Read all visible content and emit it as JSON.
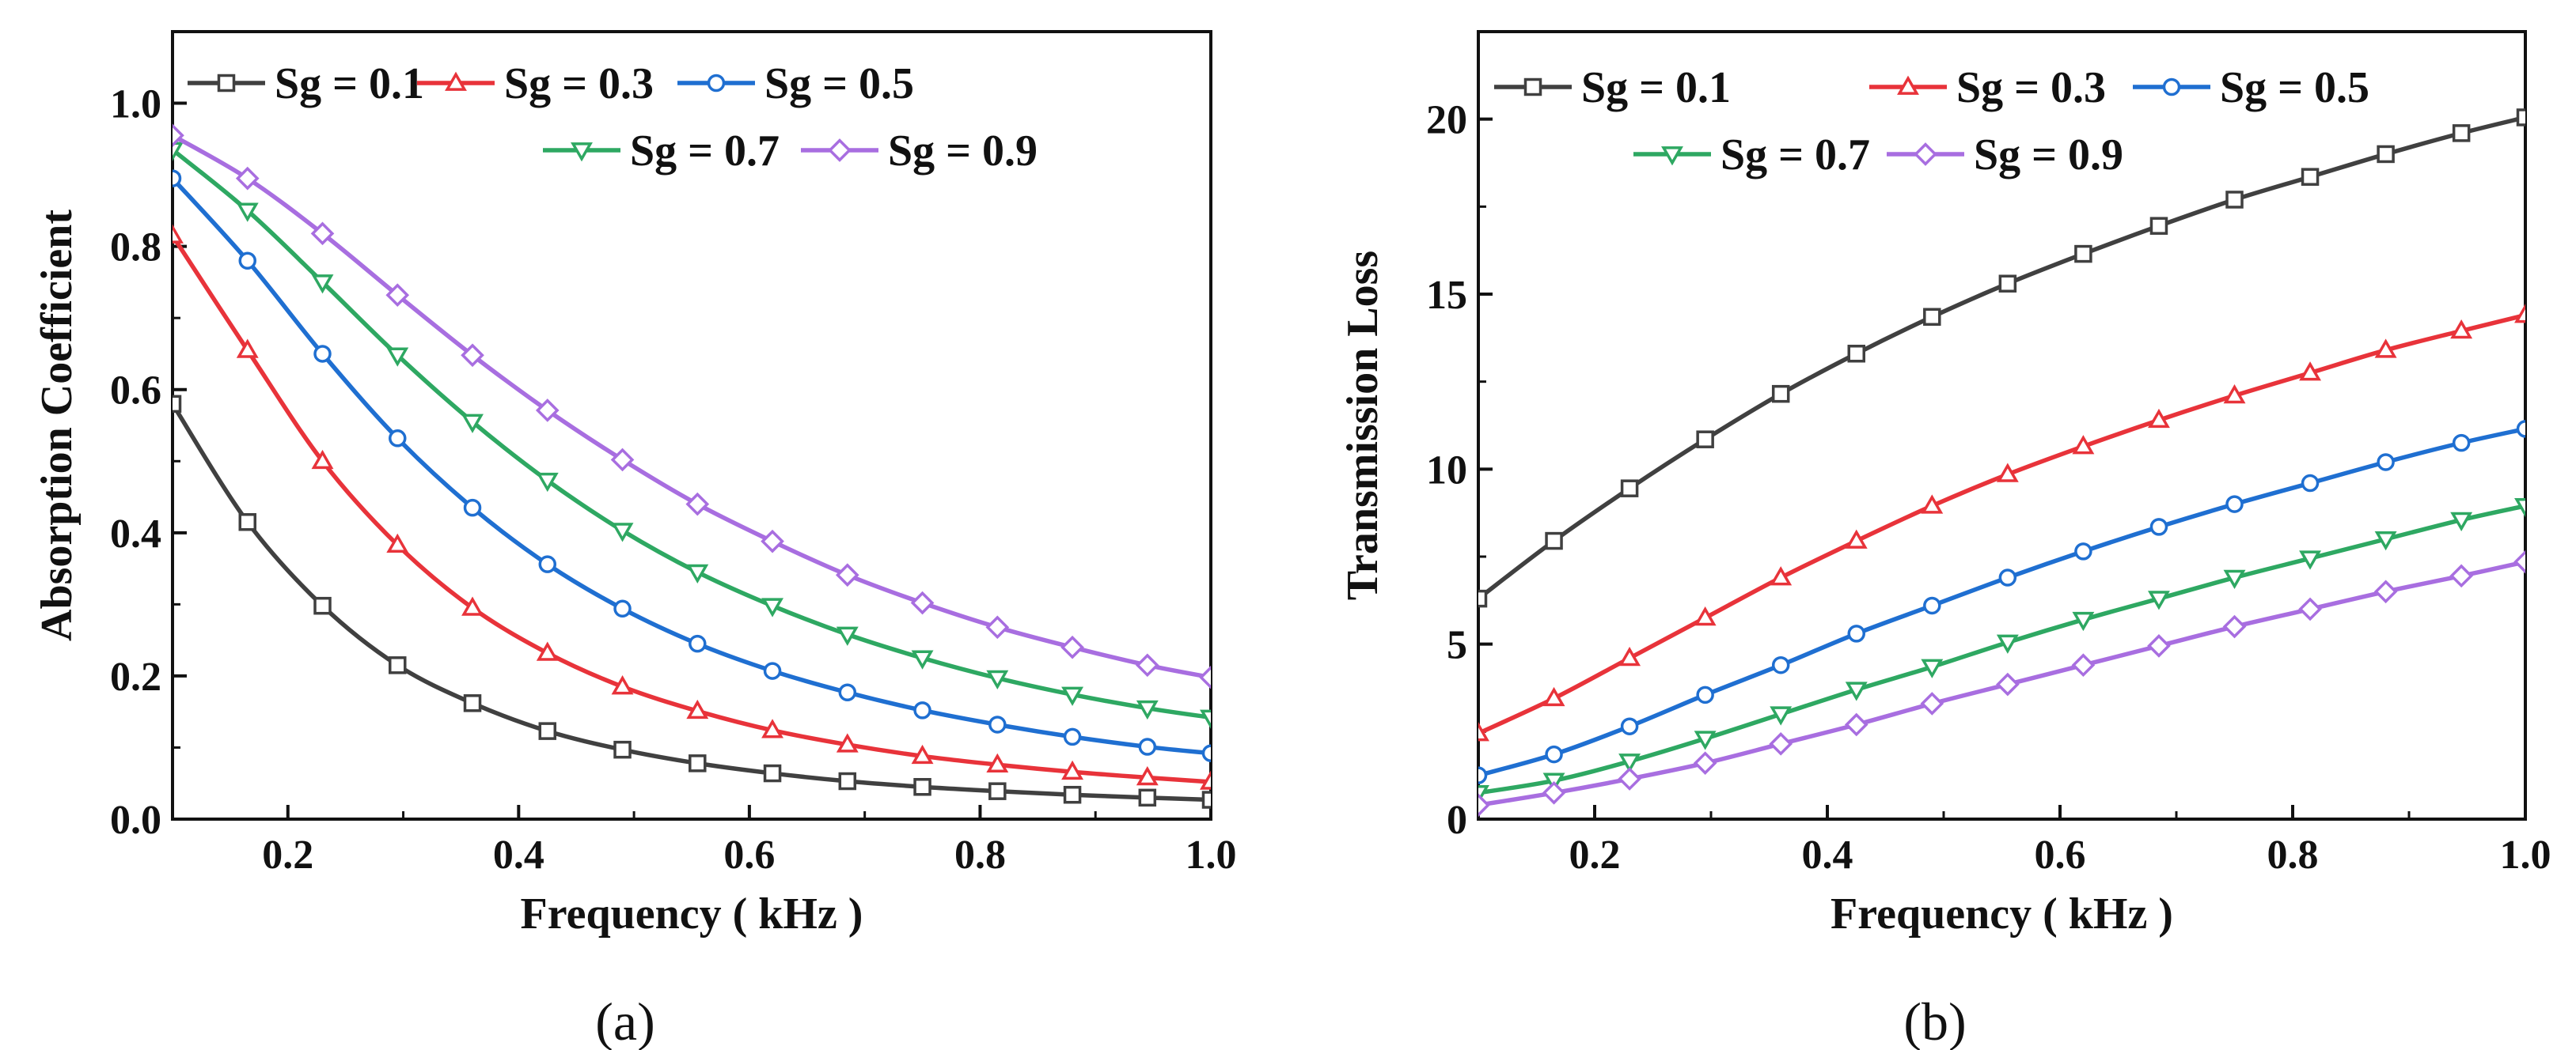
{
  "colors": {
    "Sg = 0.1": "#404040",
    "Sg = 0.3": "#e8333a",
    "Sg = 0.5": "#1f6fd1",
    "Sg = 0.7": "#2ea862",
    "Sg = 0.9": "#a86ee0"
  },
  "chart_data": [
    {
      "type": "line",
      "panel_label": "(a)",
      "title": "",
      "xlabel": "Frequency ( kHz )",
      "ylabel": "Absorption Coefficient",
      "xlim": [
        0.1,
        1.0
      ],
      "ylim": [
        0.0,
        1.1
      ],
      "xticks": [
        "0.2",
        "0.4",
        "0.6",
        "0.8",
        "1.0"
      ],
      "yticks": [
        "0.0",
        "0.2",
        "0.4",
        "0.6",
        "0.8",
        "1.0"
      ],
      "legend_position": "top",
      "x": [
        0.1,
        0.165,
        0.23,
        0.295,
        0.36,
        0.425,
        0.49,
        0.555,
        0.62,
        0.685,
        0.75,
        0.815,
        0.88,
        0.945,
        1.0
      ],
      "series": [
        {
          "name": "Sg = 0.1",
          "marker": "square",
          "values": [
            0.58,
            0.415,
            0.298,
            0.215,
            0.162,
            0.123,
            0.097,
            0.078,
            0.064,
            0.053,
            0.045,
            0.039,
            0.034,
            0.03,
            0.027
          ]
        },
        {
          "name": "Sg = 0.3",
          "marker": "triangle-up",
          "values": [
            0.815,
            0.655,
            0.5,
            0.383,
            0.295,
            0.232,
            0.185,
            0.151,
            0.124,
            0.104,
            0.088,
            0.076,
            0.066,
            0.058,
            0.052
          ]
        },
        {
          "name": "Sg = 0.5",
          "marker": "circle",
          "values": [
            0.895,
            0.78,
            0.65,
            0.532,
            0.435,
            0.356,
            0.294,
            0.245,
            0.207,
            0.177,
            0.152,
            0.132,
            0.115,
            0.101,
            0.092
          ]
        },
        {
          "name": "Sg = 0.7",
          "marker": "triangle-down",
          "values": [
            0.935,
            0.85,
            0.75,
            0.648,
            0.555,
            0.473,
            0.403,
            0.345,
            0.298,
            0.258,
            0.225,
            0.197,
            0.174,
            0.155,
            0.142
          ]
        },
        {
          "name": "Sg = 0.9",
          "marker": "diamond",
          "values": [
            0.955,
            0.895,
            0.818,
            0.732,
            0.648,
            0.571,
            0.502,
            0.44,
            0.388,
            0.341,
            0.302,
            0.268,
            0.24,
            0.215,
            0.198
          ]
        }
      ]
    },
    {
      "type": "line",
      "panel_label": "(b)",
      "title": "",
      "xlabel": "Frequency ( kHz )",
      "ylabel": "Transmission Loss",
      "xlim": [
        0.1,
        1.0
      ],
      "ylim": [
        0,
        22.5
      ],
      "xticks": [
        "0.2",
        "0.4",
        "0.6",
        "0.8",
        "1.0"
      ],
      "yticks": [
        "0",
        "5",
        "10",
        "15",
        "20"
      ],
      "legend_position": "top",
      "x": [
        0.1,
        0.165,
        0.23,
        0.295,
        0.36,
        0.425,
        0.49,
        0.555,
        0.62,
        0.685,
        0.75,
        0.815,
        0.88,
        0.945,
        1.0
      ],
      "series": [
        {
          "name": "Sg = 0.1",
          "marker": "square",
          "values": [
            6.3,
            7.95,
            9.45,
            10.85,
            12.15,
            13.3,
            14.35,
            15.3,
            16.15,
            16.95,
            17.7,
            18.35,
            19.0,
            19.6,
            20.05
          ]
        },
        {
          "name": "Sg = 0.3",
          "marker": "triangle-up",
          "values": [
            2.45,
            3.45,
            4.6,
            5.75,
            6.9,
            7.95,
            8.95,
            9.85,
            10.65,
            11.4,
            12.1,
            12.75,
            13.4,
            13.95,
            14.4
          ]
        },
        {
          "name": "Sg = 0.5",
          "marker": "circle",
          "values": [
            1.25,
            1.85,
            2.65,
            3.55,
            4.4,
            5.3,
            6.1,
            6.9,
            7.65,
            8.35,
            9.0,
            9.6,
            10.2,
            10.75,
            11.15
          ]
        },
        {
          "name": "Sg = 0.7",
          "marker": "triangle-down",
          "values": [
            0.75,
            1.1,
            1.65,
            2.3,
            3.0,
            3.7,
            4.35,
            5.05,
            5.7,
            6.3,
            6.9,
            7.45,
            8.0,
            8.55,
            8.95
          ]
        },
        {
          "name": "Sg = 0.9",
          "marker": "diamond",
          "values": [
            0.4,
            0.75,
            1.15,
            1.6,
            2.15,
            2.7,
            3.3,
            3.85,
            4.4,
            4.95,
            5.5,
            6.0,
            6.5,
            6.95,
            7.35
          ]
        }
      ]
    }
  ]
}
